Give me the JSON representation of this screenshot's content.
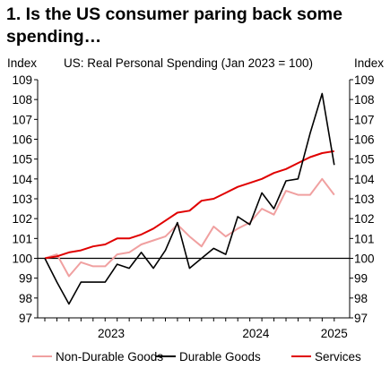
{
  "title": "1. Is the US consumer paring back some spending…",
  "chart_data": {
    "type": "line",
    "subtitle": "US: Real Personal Spending (Jan 2023 = 100)",
    "ylabel_left": "Index",
    "ylabel_right": "Index",
    "ylim": [
      97,
      109
    ],
    "yticks": [
      97,
      98,
      99,
      100,
      101,
      102,
      103,
      104,
      105,
      106,
      107,
      108,
      109
    ],
    "x_tick_labels": [
      "2023",
      "2024",
      "2025"
    ],
    "x": [
      "2023-01",
      "2023-02",
      "2023-03",
      "2023-04",
      "2023-05",
      "2023-06",
      "2023-07",
      "2023-08",
      "2023-09",
      "2023-10",
      "2023-11",
      "2023-12",
      "2024-01",
      "2024-02",
      "2024-03",
      "2024-04",
      "2024-05",
      "2024-06",
      "2024-07",
      "2024-08",
      "2024-09",
      "2024-10",
      "2024-11",
      "2024-12",
      "2025-01"
    ],
    "reference_line": 100,
    "series": [
      {
        "name": "Non-Durable Goods",
        "color": "#f0a0a0",
        "values": [
          100,
          100.2,
          99.1,
          99.8,
          99.6,
          99.6,
          100.2,
          100.3,
          100.7,
          100.9,
          101.1,
          101.7,
          101.1,
          100.6,
          101.6,
          101.1,
          101.5,
          101.8,
          102.5,
          102.2,
          103.4,
          103.2,
          103.2,
          104.0,
          103.2
        ]
      },
      {
        "name": "Durable Goods",
        "color": "#000000",
        "values": [
          100,
          98.8,
          97.7,
          98.8,
          98.8,
          98.8,
          99.7,
          99.5,
          100.3,
          99.5,
          100.4,
          101.8,
          99.5,
          100.0,
          100.5,
          100.2,
          102.1,
          101.7,
          103.3,
          102.5,
          103.9,
          104.0,
          106.3,
          108.3,
          104.7
        ]
      },
      {
        "name": "Services",
        "color": "#e00000",
        "values": [
          100,
          100.1,
          100.3,
          100.4,
          100.6,
          100.7,
          101.0,
          101.0,
          101.2,
          101.5,
          101.9,
          102.3,
          102.4,
          102.9,
          103.0,
          103.3,
          103.6,
          103.8,
          104.0,
          104.3,
          104.5,
          104.8,
          105.1,
          105.3,
          105.4
        ]
      }
    ],
    "grid": false,
    "legend_position": "bottom"
  }
}
